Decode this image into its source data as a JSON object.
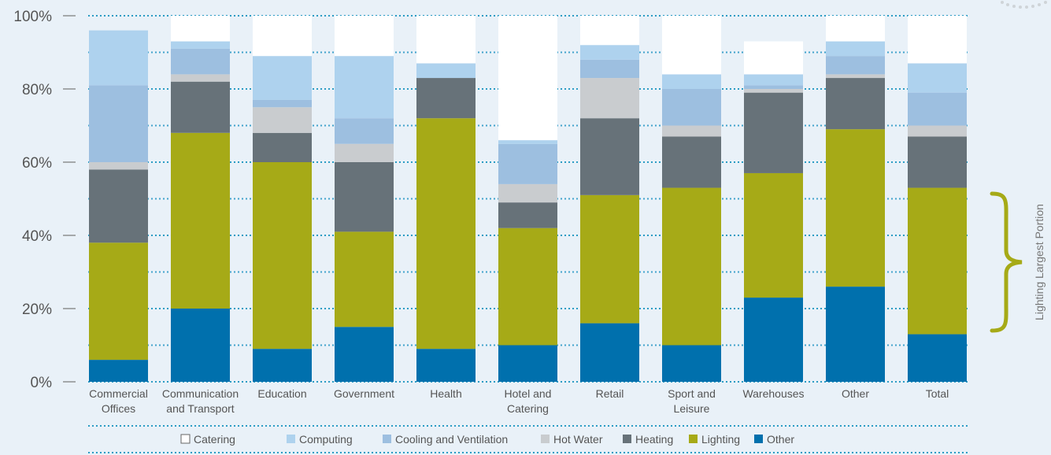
{
  "chart_data": {
    "type": "bar",
    "stacked": true,
    "categories": [
      [
        "Commercial",
        "Offices"
      ],
      [
        "Communication",
        "and Transport"
      ],
      [
        "Education"
      ],
      [
        "Government"
      ],
      [
        "Health"
      ],
      [
        "Hotel and",
        "Catering"
      ],
      [
        "Retail"
      ],
      [
        "Sport and",
        "Leisure"
      ],
      [
        "Warehouses"
      ],
      [
        "Other"
      ],
      [
        "Total"
      ]
    ],
    "yticks": [
      "0%",
      "20%",
      "40%",
      "60%",
      "80%",
      "100%"
    ],
    "ylim": [
      0,
      100
    ],
    "grid": true,
    "legend_position": "bottom",
    "series": [
      {
        "name": "Other",
        "color": "#0070ad",
        "values": [
          6,
          20,
          9,
          15,
          9,
          10,
          16,
          10,
          23,
          26,
          13
        ]
      },
      {
        "name": "Lighting",
        "color": "#a6aa17",
        "values": [
          32,
          48,
          51,
          26,
          63,
          32,
          35,
          43,
          34,
          43,
          40
        ]
      },
      {
        "name": "Heating",
        "color": "#677279",
        "values": [
          20,
          14,
          8,
          19,
          11,
          7,
          21,
          14,
          22,
          14,
          14
        ]
      },
      {
        "name": "Hot Water",
        "color": "#c9cccf",
        "values": [
          2,
          2,
          7,
          5,
          0,
          5,
          11,
          3,
          1,
          1,
          3
        ]
      },
      {
        "name": "Cooling and Ventilation",
        "color": "#9dbfe0",
        "values": [
          21,
          7,
          2,
          7,
          0,
          11,
          5,
          10,
          1,
          5,
          9
        ]
      },
      {
        "name": "Computing",
        "color": "#aed2ee",
        "values": [
          15,
          2,
          12,
          17,
          4,
          1,
          4,
          4,
          3,
          4,
          8
        ]
      },
      {
        "name": "Catering",
        "color": "#ffffff",
        "values": [
          0,
          7,
          11,
          11,
          13,
          34,
          8,
          16,
          9,
          7,
          13
        ]
      }
    ],
    "legend_order": [
      "Catering",
      "Computing",
      "Cooling and Ventilation",
      "Hot Water",
      "Heating",
      "Lighting",
      "Other"
    ],
    "annotation": {
      "text": "Lighting Largest Portion",
      "range": [
        13,
        53
      ]
    }
  }
}
